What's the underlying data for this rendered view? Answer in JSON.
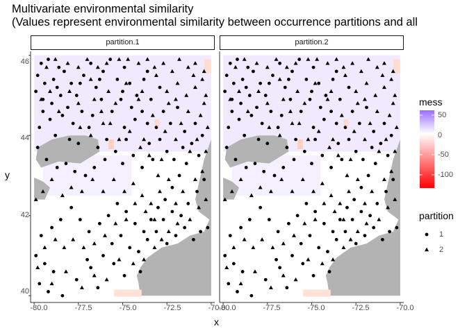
{
  "chart_data": {
    "type": "scatter",
    "title": "Multivariate environmental similarity",
    "subtitle": "(Values represent environmental similarity between occurrence partitions and all",
    "xlabel": "x",
    "ylabel": "y",
    "xlim": [
      -80.2,
      -69.8
    ],
    "ylim": [
      39.9,
      46.1
    ],
    "x_ticks": [
      "-80.0",
      "-77.5",
      "-75.0",
      "-72.5",
      "-70.0"
    ],
    "y_ticks": [
      "46",
      "44",
      "42",
      "40"
    ],
    "grid": false,
    "facets": [
      "partition.1",
      "partition.2"
    ],
    "raster_fill": {
      "name": "mess",
      "range": [
        -120,
        60
      ],
      "ticks": [
        "50",
        "0",
        "-50",
        "-100"
      ],
      "colors": {
        "high": "#9b6cff",
        "mid": "#ffffff",
        "low": "#ff0000",
        "nodata": "#b3b3b3"
      }
    },
    "legend": {
      "placement": "right",
      "shape_title": "partition",
      "shape_entries": [
        {
          "label": "1",
          "shape": "circle"
        },
        {
          "label": "2",
          "shape": "triangle"
        }
      ]
    },
    "series": [
      {
        "name": "1",
        "shape": "circle",
        "points": [
          [
            -79.6,
            45.8
          ],
          [
            -79.2,
            45.9
          ],
          [
            -78.6,
            45.7
          ],
          [
            -79.8,
            45.5
          ],
          [
            -79.4,
            45.3
          ],
          [
            -78.9,
            45.4
          ],
          [
            -78.3,
            45.6
          ],
          [
            -77.9,
            45.3
          ],
          [
            -79.9,
            45.1
          ],
          [
            -79.5,
            44.9
          ],
          [
            -79.0,
            44.8
          ],
          [
            -78.5,
            45.0
          ],
          [
            -78.1,
            44.7
          ],
          [
            -77.6,
            45.0
          ],
          [
            -77.2,
            45.5
          ],
          [
            -76.8,
            45.8
          ],
          [
            -76.5,
            45.2
          ],
          [
            -76.1,
            45.6
          ],
          [
            -75.7,
            45.9
          ],
          [
            -75.3,
            45.4
          ],
          [
            -74.9,
            45.7
          ],
          [
            -74.6,
            45.3
          ],
          [
            -74.2,
            45.0
          ],
          [
            -73.8,
            45.4
          ],
          [
            -73.4,
            44.9
          ],
          [
            -73.9,
            44.6
          ],
          [
            -74.5,
            44.7
          ],
          [
            -75.1,
            44.9
          ],
          [
            -75.6,
            44.6
          ],
          [
            -76.2,
            44.9
          ],
          [
            -76.7,
            44.5
          ],
          [
            -77.3,
            44.6
          ],
          [
            -77.8,
            44.3
          ],
          [
            -78.4,
            44.5
          ],
          [
            -79.1,
            44.4
          ],
          [
            -79.7,
            44.2
          ],
          [
            -79.8,
            43.7
          ],
          [
            -79.3,
            43.4
          ],
          [
            -78.7,
            43.2
          ],
          [
            -78.2,
            43.3
          ],
          [
            -77.7,
            43.1
          ],
          [
            -77.1,
            43.0
          ],
          [
            -76.6,
            43.2
          ],
          [
            -76.0,
            43.4
          ],
          [
            -75.4,
            43.6
          ],
          [
            -75.0,
            43.3
          ],
          [
            -74.4,
            43.5
          ],
          [
            -73.9,
            43.2
          ],
          [
            -73.5,
            43.8
          ],
          [
            -73.1,
            44.2
          ],
          [
            -72.7,
            44.6
          ],
          [
            -72.3,
            44.3
          ],
          [
            -71.9,
            44.7
          ],
          [
            -71.5,
            44.1
          ],
          [
            -71.1,
            43.8
          ],
          [
            -70.7,
            43.5
          ],
          [
            -71.4,
            43.3
          ],
          [
            -71.8,
            43.0
          ],
          [
            -72.2,
            42.7
          ],
          [
            -72.6,
            42.4
          ],
          [
            -73.0,
            42.2
          ],
          [
            -73.4,
            41.9
          ],
          [
            -73.8,
            41.6
          ],
          [
            -74.3,
            41.8
          ],
          [
            -74.8,
            42.1
          ],
          [
            -75.3,
            42.3
          ],
          [
            -75.8,
            42.0
          ],
          [
            -76.3,
            41.8
          ],
          [
            -76.9,
            41.6
          ],
          [
            -77.4,
            41.9
          ],
          [
            -77.9,
            42.2
          ],
          [
            -78.5,
            41.9
          ],
          [
            -79.0,
            41.7
          ],
          [
            -79.6,
            41.5
          ],
          [
            -79.9,
            41.0
          ],
          [
            -79.4,
            40.8
          ],
          [
            -78.9,
            40.6
          ],
          [
            -79.7,
            40.3
          ],
          [
            -79.2,
            40.1
          ],
          [
            -78.4,
            40.0
          ],
          [
            -77.6,
            40.4
          ],
          [
            -76.8,
            40.7
          ],
          [
            -76.1,
            41.0
          ],
          [
            -75.6,
            41.3
          ],
          [
            -75.1,
            41.5
          ],
          [
            -74.6,
            41.2
          ],
          [
            -74.1,
            41.1
          ],
          [
            -73.6,
            41.4
          ],
          [
            -73.1,
            41.6
          ],
          [
            -72.7,
            41.9
          ],
          [
            -72.2,
            42.1
          ],
          [
            -71.7,
            42.0
          ],
          [
            -71.3,
            42.3
          ],
          [
            -70.8,
            42.6
          ],
          [
            -70.4,
            42.9
          ],
          [
            -70.2,
            41.7
          ],
          [
            -70.6,
            41.6
          ],
          [
            -71.0,
            41.4
          ],
          [
            -71.5,
            41.7
          ],
          [
            -72.0,
            41.5
          ],
          [
            -72.5,
            41.3
          ],
          [
            -74.0,
            40.6
          ],
          [
            -74.9,
            40.5
          ],
          [
            -75.5,
            40.8
          ],
          [
            -76.4,
            40.2
          ],
          [
            -77.0,
            40.9
          ],
          [
            -75.9,
            43.9
          ],
          [
            -76.4,
            43.7
          ],
          [
            -74.9,
            44.2
          ],
          [
            -74.3,
            44.4
          ],
          [
            -73.6,
            44.3
          ],
          [
            -72.9,
            43.9
          ],
          [
            -72.5,
            43.6
          ],
          [
            -72.1,
            43.4
          ],
          [
            -71.6,
            43.7
          ],
          [
            -70.9,
            44.3
          ],
          [
            -70.5,
            44.0
          ],
          [
            -73.3,
            43.4
          ],
          [
            -74.8,
            43.9
          ],
          [
            -77.5,
            43.8
          ],
          [
            -78.0,
            43.9
          ],
          [
            -76.9,
            44.2
          ],
          [
            -78.8,
            44.0
          ],
          [
            -79.5,
            44.6
          ],
          [
            -78.7,
            45.2
          ],
          [
            -77.4,
            45.3
          ],
          [
            -76.3,
            45.4
          ],
          [
            -75.0,
            45.1
          ],
          [
            -73.6,
            45.6
          ],
          [
            -72.9,
            45.2
          ]
        ]
      },
      {
        "name": "2",
        "shape": "triangle",
        "points": [
          [
            -79.3,
            45.7
          ],
          [
            -78.8,
            45.9
          ],
          [
            -78.1,
            45.8
          ],
          [
            -77.5,
            45.7
          ],
          [
            -77.0,
            45.9
          ],
          [
            -76.4,
            45.7
          ],
          [
            -75.9,
            45.8
          ],
          [
            -75.2,
            45.9
          ],
          [
            -74.7,
            45.9
          ],
          [
            -74.1,
            45.8
          ],
          [
            -73.6,
            45.9
          ],
          [
            -73.2,
            45.7
          ],
          [
            -72.7,
            45.8
          ],
          [
            -72.2,
            45.6
          ],
          [
            -71.8,
            45.9
          ],
          [
            -71.3,
            45.7
          ],
          [
            -70.9,
            45.8
          ],
          [
            -70.4,
            45.6
          ],
          [
            -79.6,
            44.9
          ],
          [
            -78.6,
            44.6
          ],
          [
            -77.5,
            44.8
          ],
          [
            -76.6,
            44.9
          ],
          [
            -75.8,
            45.1
          ],
          [
            -74.8,
            45.3
          ],
          [
            -73.9,
            45.1
          ],
          [
            -73.1,
            45.5
          ],
          [
            -72.5,
            45.1
          ],
          [
            -71.9,
            45.3
          ],
          [
            -71.4,
            45.0
          ],
          [
            -70.9,
            45.2
          ],
          [
            -70.3,
            45.0
          ],
          [
            -72.0,
            44.9
          ],
          [
            -71.3,
            44.6
          ],
          [
            -70.6,
            44.5
          ],
          [
            -70.2,
            44.2
          ],
          [
            -72.6,
            44.1
          ],
          [
            -73.3,
            44.5
          ],
          [
            -74.1,
            44.9
          ],
          [
            -75.4,
            44.8
          ],
          [
            -76.1,
            44.3
          ],
          [
            -76.8,
            44.0
          ],
          [
            -77.4,
            44.2
          ],
          [
            -74.6,
            44.1
          ],
          [
            -73.8,
            43.9
          ],
          [
            -72.8,
            43.4
          ],
          [
            -72.0,
            43.9
          ],
          [
            -71.2,
            43.6
          ],
          [
            -70.8,
            43.9
          ],
          [
            -70.3,
            43.6
          ],
          [
            -70.5,
            43.1
          ],
          [
            -70.9,
            42.9
          ],
          [
            -71.6,
            42.6
          ],
          [
            -72.0,
            42.3
          ],
          [
            -72.4,
            42.9
          ],
          [
            -72.9,
            42.6
          ],
          [
            -73.4,
            42.3
          ],
          [
            -73.9,
            42.5
          ],
          [
            -74.4,
            42.8
          ],
          [
            -74.9,
            42.6
          ],
          [
            -75.5,
            42.9
          ],
          [
            -76.1,
            42.6
          ],
          [
            -76.7,
            42.9
          ],
          [
            -77.3,
            42.6
          ],
          [
            -77.9,
            42.7
          ],
          [
            -78.4,
            42.5
          ],
          [
            -79.0,
            42.9
          ],
          [
            -79.5,
            42.6
          ],
          [
            -79.9,
            42.4
          ],
          [
            -70.3,
            42.4
          ],
          [
            -70.7,
            42.2
          ],
          [
            -71.2,
            41.9
          ],
          [
            -71.9,
            41.8
          ],
          [
            -72.4,
            41.6
          ],
          [
            -73.2,
            41.9
          ],
          [
            -73.7,
            42.1
          ],
          [
            -74.3,
            42.3
          ],
          [
            -74.8,
            41.9
          ],
          [
            -75.4,
            41.8
          ],
          [
            -76.0,
            41.5
          ],
          [
            -76.6,
            41.3
          ],
          [
            -77.2,
            41.2
          ],
          [
            -77.8,
            41.4
          ],
          [
            -78.3,
            41.2
          ],
          [
            -78.8,
            41.4
          ],
          [
            -79.4,
            41.2
          ],
          [
            -79.8,
            40.7
          ],
          [
            -79.0,
            40.3
          ],
          [
            -78.2,
            40.6
          ],
          [
            -77.3,
            40.2
          ],
          [
            -76.6,
            40.5
          ],
          [
            -75.9,
            40.4
          ],
          [
            -75.2,
            40.9
          ],
          [
            -74.4,
            40.8
          ],
          [
            -73.8,
            40.9
          ],
          [
            -73.2,
            41.2
          ],
          [
            -72.8,
            41.4
          ],
          [
            -73.0,
            43.0
          ],
          [
            -73.5,
            43.5
          ],
          [
            -74.0,
            43.7
          ],
          [
            -75.2,
            43.9
          ],
          [
            -75.7,
            44.3
          ],
          [
            -76.2,
            44.6
          ],
          [
            -72.4,
            44.8
          ],
          [
            -71.7,
            44.3
          ],
          [
            -70.4,
            44.8
          ],
          [
            -70.5,
            45.4
          ],
          [
            -71.0,
            45.5
          ],
          [
            -76.8,
            45.4
          ],
          [
            -78.0,
            45.1
          ],
          [
            -79.1,
            45.1
          ]
        ]
      }
    ]
  }
}
